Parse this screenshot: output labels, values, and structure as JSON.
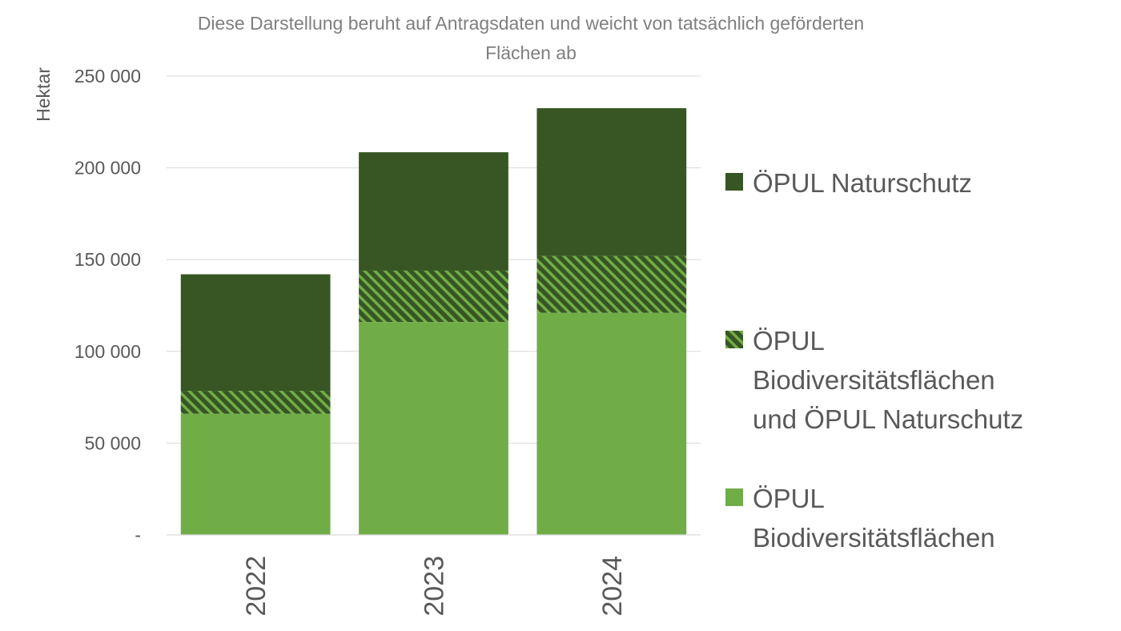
{
  "chart_data": {
    "type": "bar",
    "stacked": true,
    "title_lines": [
      "Diese Darstellung beruht auf Antragsdaten und weicht von tatsächlich geförderten",
      "Flächen ab"
    ],
    "ylabel": "Hektar",
    "xlabel": "",
    "ylim": [
      0,
      250000
    ],
    "yticks": [
      0,
      50000,
      100000,
      150000,
      200000,
      250000
    ],
    "ytick_labels": [
      "-",
      "50 000",
      "100 000",
      "150 000",
      "200 000",
      "250 000"
    ],
    "categories": [
      "2022",
      "2023",
      "2024"
    ],
    "grid": true,
    "legend_position": "right",
    "series": [
      {
        "name": "ÖPUL Biodiversitätsflächen",
        "label_lines": [
          "ÖPUL",
          "Biodiversitätsflächen"
        ],
        "values": [
          66000,
          116000,
          121000
        ],
        "color": "#70ad47",
        "pattern": "solid"
      },
      {
        "name": "ÖPUL Biodiversitätsflächen und ÖPUL Naturschutz",
        "label_lines": [
          "ÖPUL",
          "Biodiversitätsflächen",
          "und ÖPUL Naturschutz"
        ],
        "values": [
          12500,
          28000,
          31000
        ],
        "color": "#70ad47",
        "pattern": "hatched"
      },
      {
        "name": "ÖPUL Naturschutz",
        "label_lines": [
          "ÖPUL Naturschutz"
        ],
        "values": [
          63500,
          64500,
          80500
        ],
        "color": "#375623",
        "pattern": "solid"
      }
    ]
  }
}
